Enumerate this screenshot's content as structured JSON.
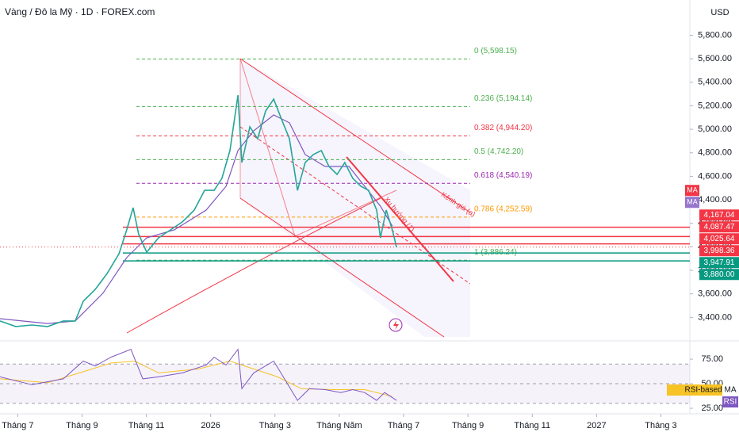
{
  "header": {
    "symbol": "Vàng / Đô la Mỹ · 1D · FOREX.com",
    "currency": "USD"
  },
  "chart_data": {
    "type": "line",
    "xlim": [
      -0.55,
      20.9
    ],
    "xticks": [
      {
        "value": 0,
        "label": "Tháng 7"
      },
      {
        "value": 2,
        "label": "Tháng 9"
      },
      {
        "value": 4,
        "label": "Tháng 11"
      },
      {
        "value": 6,
        "label": "2026"
      },
      {
        "value": 8,
        "label": "Tháng 3"
      },
      {
        "value": 10,
        "label": "Tháng Năm"
      },
      {
        "value": 12,
        "label": "Tháng 7"
      },
      {
        "value": 14,
        "label": "Tháng 9"
      },
      {
        "value": 16,
        "label": "Tháng 11"
      },
      {
        "value": 18,
        "label": "2027"
      },
      {
        "value": 20,
        "label": "Tháng 3"
      }
    ],
    "ylim": [
      3200,
      6100
    ],
    "yticks": [
      {
        "value": 3400,
        "label": "3,400.00"
      },
      {
        "value": 3600,
        "label": "3,600.00"
      },
      {
        "value": 3800,
        "label": "3,800.00"
      },
      {
        "value": 4000,
        "label": "4,000.00"
      },
      {
        "value": 4200,
        "label": "4,200.00"
      },
      {
        "value": 4400,
        "label": "4,400.00"
      },
      {
        "value": 4600,
        "label": "4,600.00"
      },
      {
        "value": 4800,
        "label": "4,800.00"
      },
      {
        "value": 5000,
        "label": "5,000.00"
      },
      {
        "value": 5200,
        "label": "5,200.00"
      },
      {
        "value": 5400,
        "label": "5,400.00"
      },
      {
        "value": 5600,
        "label": "5,600.00"
      },
      {
        "value": 5800,
        "label": "5,800.00"
      }
    ],
    "price": {
      "color": "#26a69a",
      "x": [
        -0.55,
        -0.06,
        0.44,
        0.93,
        1.42,
        1.79,
        2.04,
        2.41,
        2.78,
        3.15,
        3.39,
        3.59,
        3.76,
        4.01,
        4.38,
        4.75,
        5.12,
        5.49,
        5.81,
        6.11,
        6.35,
        6.6,
        6.85,
        6.97,
        7.22,
        7.46,
        7.71,
        7.96,
        8.2,
        8.45,
        8.7,
        8.94,
        9.19,
        9.44,
        9.68,
        9.93,
        10.17,
        10.42,
        10.67,
        10.91,
        11.16,
        11.28,
        11.46,
        11.65,
        11.78
      ],
      "values": [
        3369,
        3322,
        3335,
        3322,
        3369,
        3369,
        3537,
        3638,
        3773,
        3942,
        4144,
        4333,
        4110,
        3955,
        4077,
        4144,
        4212,
        4313,
        4481,
        4481,
        4583,
        4819,
        5291,
        4717,
        5021,
        4920,
        5156,
        5257,
        5088,
        4920,
        4481,
        4717,
        4785,
        4819,
        4684,
        4616,
        4717,
        4583,
        4515,
        4481,
        4313,
        4077,
        4313,
        4144,
        3996
      ]
    },
    "ma": {
      "color": "#7e57c2",
      "x": [
        -0.55,
        0.93,
        1.79,
        2.65,
        3.39,
        4.01,
        4.87,
        5.86,
        6.48,
        6.85,
        7.34,
        7.96,
        8.45,
        8.94,
        9.56,
        10.3,
        10.79,
        11.28,
        11.65
      ],
      "values": [
        3389,
        3348,
        3369,
        3605,
        3908,
        4077,
        4144,
        4313,
        4515,
        4819,
        4987,
        5122,
        5055,
        4785,
        4684,
        4684,
        4515,
        4346,
        4178
      ]
    },
    "fib_levels": [
      {
        "label": "0 (5,598.15)",
        "value": 5598.15,
        "color": "#4caf50"
      },
      {
        "label": "0.236 (5,194.14)",
        "value": 5194.14,
        "color": "#4caf50"
      },
      {
        "label": "0.382 (4,944.20)",
        "value": 4944.2,
        "color": "#f23645"
      },
      {
        "label": "0.5 (4,742.20)",
        "value": 4742.2,
        "color": "#4caf50"
      },
      {
        "label": "0.618 (4,540.19)",
        "value": 4540.19,
        "color": "#9c27b0"
      },
      {
        "label": "0.786 (4,252.59)",
        "value": 4252.59,
        "color": "#ff9800"
      },
      {
        "label": "1 (3,886.24)",
        "value": 3886.24,
        "color": "#4caf50"
      }
    ],
    "ma_tags": [
      {
        "label": "MA",
        "color": "#f23645"
      },
      {
        "label": "MA",
        "color": "#9575cd"
      }
    ],
    "price_tags": [
      {
        "label": "4,167.04",
        "value": 4167.04,
        "color": "#f23645"
      },
      {
        "label": "4,087.47",
        "value": 4087.47,
        "color": "#f23645"
      },
      {
        "label": "4,025.64",
        "value": 4025.64,
        "color": "#f23645"
      },
      {
        "label": "3,998.36",
        "value": 3998.36,
        "color": "#f23645"
      },
      {
        "label": "3,947.91",
        "value": 3947.91,
        "color": "#089981"
      },
      {
        "label": "3,880.00",
        "value": 3880,
        "color": "#089981"
      }
    ],
    "annotations": {
      "channel": "Kênh giá (a)",
      "trend": "Xu hướng (1)"
    },
    "rsi": {
      "ylim": [
        21,
        92
      ],
      "yticks": [
        {
          "value": 75,
          "label": "75.00"
        },
        {
          "value": 50,
          "label": "50.00"
        },
        {
          "value": 25,
          "label": "25.00"
        }
      ],
      "band": [
        30,
        70
      ],
      "mid": 50,
      "rsi_line": {
        "name": "RSI",
        "color": "#7e57c2",
        "x": [
          -0.55,
          0.44,
          1.42,
          2.04,
          2.41,
          2.9,
          3.52,
          3.89,
          4.38,
          5.12,
          5.86,
          6.11,
          6.48,
          6.85,
          6.97,
          7.34,
          7.96,
          8.33,
          8.7,
          9.07,
          9.56,
          10.05,
          10.42,
          10.79,
          11.16,
          11.41,
          11.78
        ],
        "values": [
          57,
          49,
          55,
          73,
          68,
          77,
          85,
          55,
          57,
          61,
          69,
          77,
          69,
          85,
          45,
          61,
          73,
          53,
          33,
          45,
          44,
          41,
          44,
          41,
          33,
          41,
          33
        ]
      },
      "ma_line": {
        "name": "RSI-based MA",
        "color": "#f7c325",
        "x": [
          -0.55,
          0.93,
          1.92,
          2.9,
          3.64,
          4.38,
          5.61,
          6.6,
          7.34,
          8.08,
          8.82,
          9.8,
          10.79,
          11.65
        ],
        "values": [
          55,
          51,
          61,
          71,
          73,
          61,
          65,
          73,
          65,
          57,
          45,
          44,
          44,
          37
        ]
      }
    }
  }
}
